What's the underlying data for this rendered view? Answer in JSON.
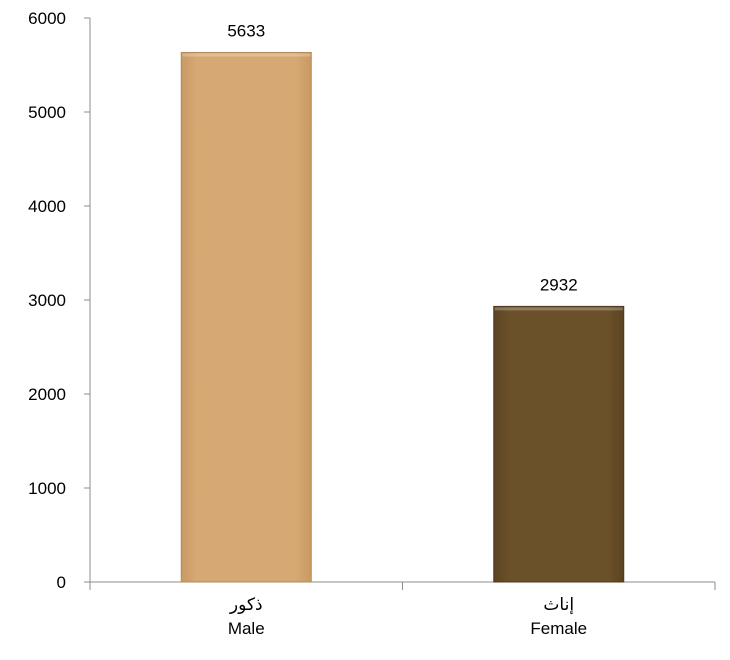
{
  "chart_data": {
    "type": "bar",
    "categories": [
      {
        "ar": "ذكور",
        "en": "Male"
      },
      {
        "ar": "إناث",
        "en": "Female"
      }
    ],
    "values": [
      5633,
      2932
    ],
    "data_labels": [
      "5633",
      "2932"
    ],
    "ylim": [
      0,
      6000
    ],
    "yticks": [
      "0",
      "1000",
      "2000",
      "3000",
      "4000",
      "5000",
      "6000"
    ],
    "ytick_values": [
      0,
      1000,
      2000,
      3000,
      4000,
      5000,
      6000
    ],
    "bar_colors": [
      "#d6a873",
      "#6b5129"
    ],
    "bar_edge_colors": [
      "#b58a55",
      "#4e3a1c"
    ],
    "axis_color": "#8c8c8c",
    "grid": false,
    "title": "",
    "xlabel": "",
    "ylabel": ""
  }
}
